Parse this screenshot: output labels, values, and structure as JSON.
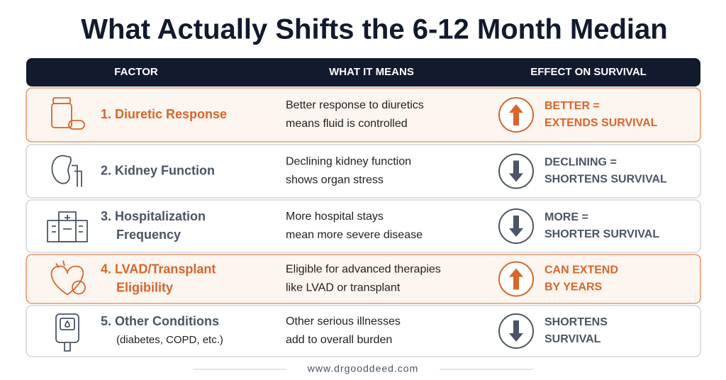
{
  "title": "What Actually Shifts the 6-12 Month Median",
  "table": {
    "headers": [
      "FACTOR",
      "WHAT IT MEANS",
      "EFFECT ON SURVIVAL"
    ],
    "rows": [
      {
        "factor": [
          "1. Diuretic Response"
        ],
        "meaning": [
          "Better response to diuretics",
          "means fluid is controlled"
        ],
        "effect": [
          "BETTER =",
          "EXTENDS SURVIVAL"
        ],
        "direction": "up",
        "highlight": true
      },
      {
        "factor": [
          "2. Kidney Function"
        ],
        "meaning": [
          "Declining kidney function",
          "shows organ stress"
        ],
        "effect": [
          "DECLINING =",
          "SHORTENS SURVIVAL"
        ],
        "direction": "down",
        "highlight": false
      },
      {
        "factor": [
          "3. Hospitalization",
          "Frequency"
        ],
        "meaning": [
          "More hospital stays",
          "mean more severe disease"
        ],
        "effect": [
          "MORE =",
          "SHORTER SURVIVAL"
        ],
        "direction": "down",
        "highlight": false
      },
      {
        "factor": [
          "4. LVAD/Transplant",
          "Eligibility"
        ],
        "meaning": [
          "Eligible for advanced therapies",
          "like LVAD or transplant"
        ],
        "effect": [
          "CAN EXTEND",
          "BY YEARS"
        ],
        "direction": "up",
        "highlight": true
      },
      {
        "factor": [
          "5. Other Conditions",
          "(diabetes, COPD, etc.)"
        ],
        "meaning": [
          "Other serious illnesses",
          "add to overall burden"
        ],
        "effect": [
          "SHORTENS",
          "SURVIVAL"
        ],
        "direction": "down",
        "highlight": false
      }
    ]
  },
  "footer": "www.drgooddeed.com"
}
